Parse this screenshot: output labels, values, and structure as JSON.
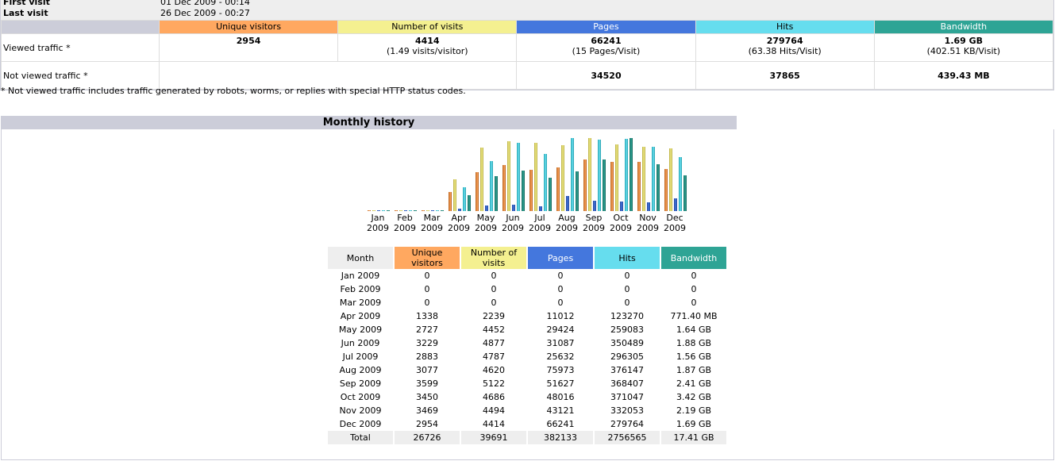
{
  "summary": {
    "first_visit_label": "First visit",
    "first_visit_value": "01 Dec 2009 - 00:14",
    "last_visit_label": "Last visit",
    "last_visit_value": "26 Dec 2009 - 00:27",
    "columns": [
      "Unique visitors",
      "Number of visits",
      "Pages",
      "Hits",
      "Bandwidth"
    ],
    "viewed": {
      "label": "Viewed traffic *",
      "unique": "2954",
      "visits": "4414",
      "visits_sub": "(1.49 visits/visitor)",
      "pages": "66241",
      "pages_sub": "(15 Pages/Visit)",
      "hits": "279764",
      "hits_sub": "(63.38 Hits/Visit)",
      "bandwidth": "1.69 GB",
      "bandwidth_sub": "(402.51 KB/Visit)"
    },
    "not_viewed": {
      "label": "Not viewed traffic *",
      "pages": "34520",
      "hits": "37865",
      "bandwidth": "439.43 MB"
    },
    "note": "* Not viewed traffic includes traffic generated by robots, worms, or replies with special HTTP status codes."
  },
  "monthly": {
    "title": "Monthly history",
    "headers": {
      "month": "Month",
      "unique": "Unique visitors",
      "visits": "Number of visits",
      "pages": "Pages",
      "hits": "Hits",
      "bandwidth": "Bandwidth"
    },
    "rows": [
      {
        "month": "Jan 2009",
        "unique": "0",
        "visits": "0",
        "pages": "0",
        "hits": "0",
        "bandwidth": "0"
      },
      {
        "month": "Feb 2009",
        "unique": "0",
        "visits": "0",
        "pages": "0",
        "hits": "0",
        "bandwidth": "0"
      },
      {
        "month": "Mar 2009",
        "unique": "0",
        "visits": "0",
        "pages": "0",
        "hits": "0",
        "bandwidth": "0"
      },
      {
        "month": "Apr 2009",
        "unique": "1338",
        "visits": "2239",
        "pages": "11012",
        "hits": "123270",
        "bandwidth": "771.40 MB"
      },
      {
        "month": "May 2009",
        "unique": "2727",
        "visits": "4452",
        "pages": "29424",
        "hits": "259083",
        "bandwidth": "1.64 GB"
      },
      {
        "month": "Jun 2009",
        "unique": "3229",
        "visits": "4877",
        "pages": "31087",
        "hits": "350489",
        "bandwidth": "1.88 GB"
      },
      {
        "month": "Jul 2009",
        "unique": "2883",
        "visits": "4787",
        "pages": "25632",
        "hits": "296305",
        "bandwidth": "1.56 GB"
      },
      {
        "month": "Aug 2009",
        "unique": "3077",
        "visits": "4620",
        "pages": "75973",
        "hits": "376147",
        "bandwidth": "1.87 GB"
      },
      {
        "month": "Sep 2009",
        "unique": "3599",
        "visits": "5122",
        "pages": "51627",
        "hits": "368407",
        "bandwidth": "2.41 GB"
      },
      {
        "month": "Oct 2009",
        "unique": "3450",
        "visits": "4686",
        "pages": "48016",
        "hits": "371047",
        "bandwidth": "3.42 GB"
      },
      {
        "month": "Nov 2009",
        "unique": "3469",
        "visits": "4494",
        "pages": "43121",
        "hits": "332053",
        "bandwidth": "2.19 GB"
      },
      {
        "month": "Dec 2009",
        "unique": "2954",
        "visits": "4414",
        "pages": "66241",
        "hits": "279764",
        "bandwidth": "1.69 GB"
      }
    ],
    "total": {
      "month": "Total",
      "unique": "26726",
      "visits": "39691",
      "pages": "382133",
      "hits": "2756565",
      "bandwidth": "17.41 GB"
    },
    "chart_labels": [
      {
        "month": "Jan",
        "year": "2009"
      },
      {
        "month": "Feb",
        "year": "2009"
      },
      {
        "month": "Mar",
        "year": "2009"
      },
      {
        "month": "Apr",
        "year": "2009"
      },
      {
        "month": "May",
        "year": "2009"
      },
      {
        "month": "Jun",
        "year": "2009"
      },
      {
        "month": "Jul",
        "year": "2009"
      },
      {
        "month": "Aug",
        "year": "2009"
      },
      {
        "month": "Sep",
        "year": "2009"
      },
      {
        "month": "Oct",
        "year": "2009"
      },
      {
        "month": "Nov",
        "year": "2009"
      },
      {
        "month": "Dec",
        "year": "2009"
      }
    ]
  },
  "colors": {
    "unique": "#ffa860",
    "visits": "#f4f090",
    "pages": "#4477dd",
    "hits": "#66ddee",
    "bandwidth": "#2ea495",
    "header_bg": "#cccdd9"
  }
}
